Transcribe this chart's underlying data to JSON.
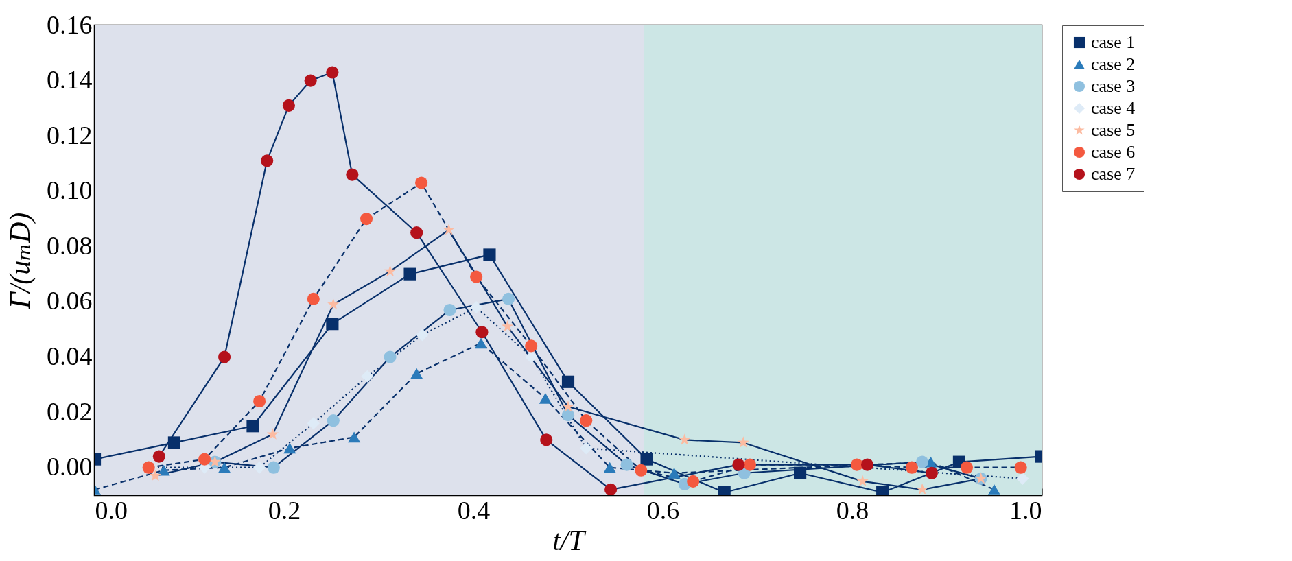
{
  "chart_data": {
    "type": "line",
    "xlabel": "t/T",
    "ylabel": "Γ/(uₘD)",
    "xlim": [
      0,
      1
    ],
    "xticks": [
      {
        "value": 0,
        "label": "0.0"
      },
      0.2,
      0.4,
      0.6,
      0.8,
      {
        "value": 1,
        "label": "1.0"
      }
    ],
    "ylim": [
      -0.01,
      0.16
    ],
    "yticks": [
      {
        "value": 0,
        "label": "0.00"
      },
      {
        "value": 0.02,
        "label": "0.02"
      },
      {
        "value": 0.04,
        "label": "0.04"
      },
      {
        "value": 0.06,
        "label": "0.06"
      },
      {
        "value": 0.08,
        "label": "0.08"
      },
      {
        "value": 0.1,
        "label": "0.10"
      },
      {
        "value": 0.12,
        "label": "0.12"
      },
      {
        "value": 0.14,
        "label": "0.14"
      },
      {
        "value": 0.16,
        "label": "0.16"
      }
    ],
    "legend": "right",
    "bands": [
      {
        "axis": "x",
        "from": 0,
        "to": 0.58,
        "color": "#dde1ec"
      },
      {
        "axis": "x",
        "from": 0.58,
        "to": 1,
        "color": "#cce6e5"
      }
    ],
    "series": [
      {
        "name": "case 1",
        "color": "#08306b",
        "marker": "square",
        "line_style": "solid",
        "x": [
          0,
          0.084,
          0.167,
          0.251,
          0.333,
          0.417,
          0.5,
          0.583,
          0.665,
          0.745,
          0.832,
          0.913,
          1.0
        ],
        "values": [
          0.003,
          0.009,
          0.015,
          0.052,
          0.07,
          0.077,
          0.031,
          0.003,
          -0.009,
          -0.002,
          -0.009,
          0.002,
          0.004
        ]
      },
      {
        "name": "case 2",
        "color": "#2b7bba",
        "marker": "triangle",
        "line_style": "dashed",
        "x": [
          0,
          0.073,
          0.137,
          0.206,
          0.274,
          0.34,
          0.408,
          0.476,
          0.544,
          0.612,
          0.883,
          0.95
        ],
        "values": [
          -0.008,
          -0.001,
          0.0,
          0.007,
          0.011,
          0.034,
          0.045,
          0.025,
          0.0,
          -0.002,
          0.002,
          -0.008
        ]
      },
      {
        "name": "case 3",
        "color": "#8fc0df",
        "marker": "circle",
        "line_style": "solid",
        "x": [
          0.127,
          0.189,
          0.252,
          0.312,
          0.375,
          0.437,
          0.5,
          0.562,
          0.623,
          0.686,
          0.874,
          0.936
        ],
        "values": [
          0.002,
          0.0,
          0.017,
          0.04,
          0.057,
          0.061,
          0.019,
          0.001,
          -0.006,
          -0.002,
          0.002,
          -0.004
        ]
      },
      {
        "name": "case 4",
        "color": "#deebf7",
        "marker": "diamond",
        "line_style": "dotted",
        "x": [
          0.058,
          0.116,
          0.174,
          0.231,
          0.288,
          0.346,
          0.403,
          0.461,
          0.519,
          0.98
        ],
        "values": [
          0.0,
          0.0,
          0.0,
          0.016,
          0.033,
          0.048,
          0.058,
          0.04,
          0.007,
          -0.004
        ]
      },
      {
        "name": "case 5",
        "color": "#fcbba1",
        "marker": "star",
        "line_style": "solid",
        "x": [
          0.064,
          0.127,
          0.188,
          0.252,
          0.312,
          0.374,
          0.436,
          0.5,
          0.623,
          0.685,
          0.811,
          0.874,
          0.936
        ],
        "values": [
          -0.003,
          0.002,
          0.012,
          0.059,
          0.071,
          0.086,
          0.051,
          0.022,
          0.01,
          0.009,
          -0.005,
          -0.008,
          -0.004
        ]
      },
      {
        "name": "case 6",
        "color": "#f4593f",
        "marker": "circle",
        "line_style": "dashed",
        "x": [
          0.057,
          0.116,
          0.174,
          0.231,
          0.287,
          0.345,
          0.403,
          0.461,
          0.519,
          0.577,
          0.632,
          0.692,
          0.805,
          0.863,
          0.921,
          0.978
        ],
        "values": [
          0.0,
          0.003,
          0.024,
          0.061,
          0.09,
          0.103,
          0.069,
          0.044,
          0.017,
          -0.001,
          -0.005,
          0.001,
          0.001,
          0.0,
          0.0,
          0.0
        ]
      },
      {
        "name": "case 7",
        "color": "#b5121b",
        "marker": "circle",
        "line_style": "solid",
        "x": [
          0.068,
          0.137,
          0.182,
          0.205,
          0.228,
          0.251,
          0.272,
          0.34,
          0.409,
          0.477,
          0.545,
          0.68,
          0.816,
          0.884
        ],
        "values": [
          0.004,
          0.04,
          0.111,
          0.131,
          0.14,
          0.143,
          0.106,
          0.085,
          0.049,
          0.01,
          -0.008,
          0.001,
          0.001,
          -0.002
        ]
      }
    ]
  }
}
